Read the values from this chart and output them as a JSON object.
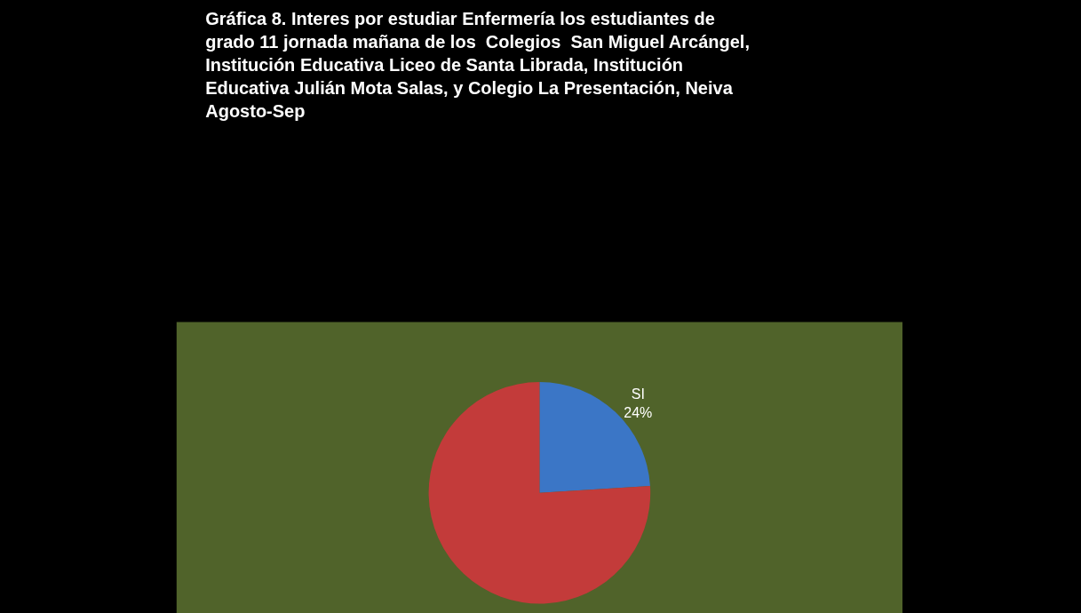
{
  "chart_data": {
    "type": "pie",
    "title": "Gráfica 8. Interes por estudiar Enfermería los estudiantes de grado 11 jornada mañana de los  Colegios  San Miguel Arcángel, Institución Educativa Liceo de Santa Librada, Institución Educativa Julián Mota Salas, y Colegio La Presentación, Neiva Agosto-Sep",
    "categories": [
      "SI",
      null
    ],
    "values": [
      24,
      76
    ],
    "value_labels": [
      "24%",
      null
    ],
    "colors": [
      "#3b76c6",
      "#c33b3a"
    ],
    "legend": false
  }
}
